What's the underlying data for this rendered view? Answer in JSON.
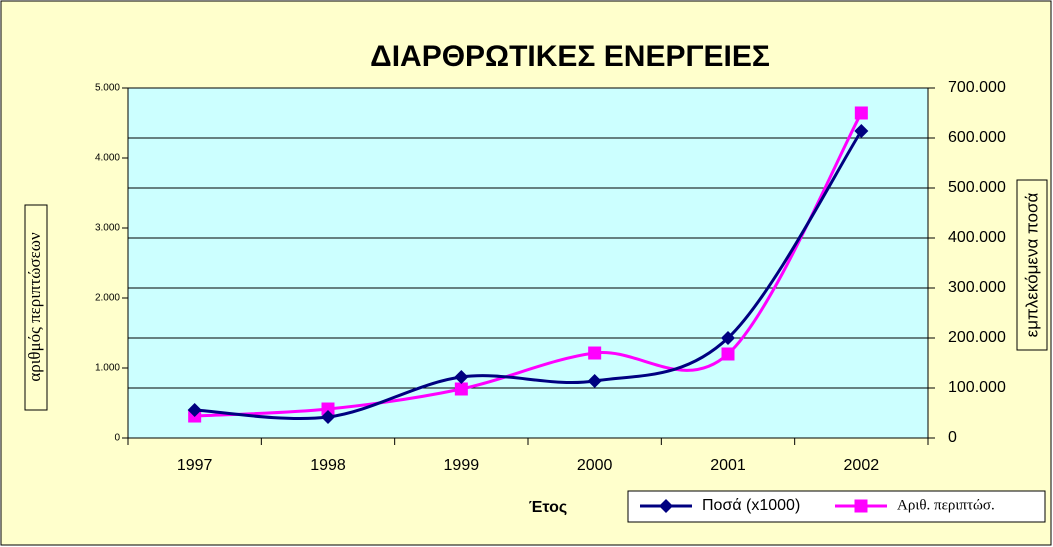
{
  "chart_data": {
    "type": "line",
    "title": "ΔΙΑΡΘΡΩΤΙΚΕΣ ΕΝΕΡΓΕΙΕΣ",
    "x_label": "Έτος",
    "y_label": "αριθμός περιπτώσεων",
    "y2_label": "εμπλεκόμενα ποσά",
    "categories": [
      "1997",
      "1998",
      "1999",
      "2000",
      "2001",
      "2002"
    ],
    "series": [
      {
        "name": "Ποσά (x1000)",
        "color": "#000080",
        "axis": "y2",
        "marker": "diamond",
        "values": [
          56000,
          42000,
          122000,
          114000,
          200000,
          614000
        ]
      },
      {
        "name": "Αριθ. περιπτώσ.",
        "color": "#FF00FF",
        "axis": "y",
        "marker": "square",
        "values": [
          314,
          414,
          700,
          1214,
          1200,
          4643
        ]
      }
    ],
    "ylim": [
      0,
      5000
    ],
    "yticks": [
      0,
      {
        "value": 1000,
        "label": "1.000"
      },
      {
        "value": 2000,
        "label": "2.000"
      },
      {
        "value": 3000,
        "label": "3.000"
      },
      {
        "value": 4000,
        "label": "4.000"
      },
      {
        "value": 5000,
        "label": "5.000"
      }
    ],
    "y2lim": [
      0,
      700000
    ],
    "y2ticks": [
      0,
      {
        "value": 100000,
        "label": "100.000"
      },
      {
        "value": 200000,
        "label": "200.000"
      },
      {
        "value": 300000,
        "label": "300.000"
      },
      {
        "value": 400000,
        "label": "400.000"
      },
      {
        "value": 500000,
        "label": "500.000"
      },
      {
        "value": 600000,
        "label": "600.000"
      },
      {
        "value": 700000,
        "label": "700.000"
      }
    ],
    "grid": "y2",
    "smooth": true,
    "legend": "bottom-right"
  }
}
